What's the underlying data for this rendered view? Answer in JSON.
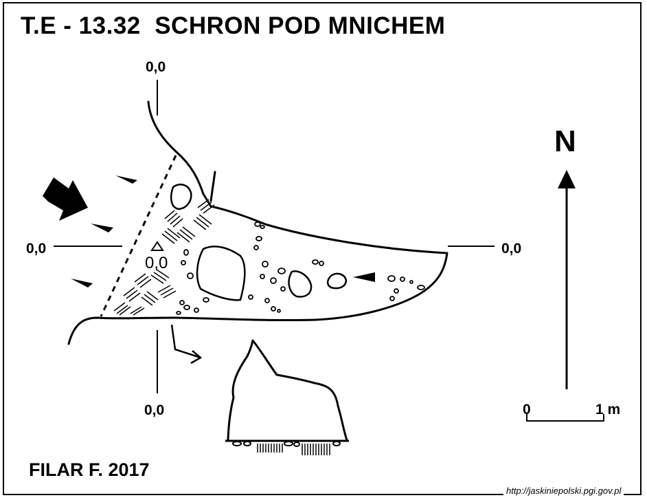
{
  "title": "T.E - 13.32  SCHRON POD MNICHEM",
  "author": "FILAR F. 2017",
  "source_url": "http://jaskiniepolski.pgi.gov.pl",
  "datum_labels": {
    "top": "0,0",
    "left": "0,0",
    "right": "0,0",
    "bottom": "0,0",
    "station": "0,0"
  },
  "north_label": "N",
  "scale_bar": {
    "start_label": "0",
    "end_label": "1 m"
  }
}
